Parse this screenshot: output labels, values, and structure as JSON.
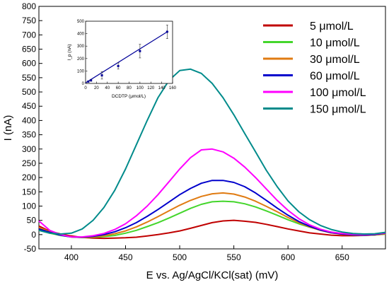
{
  "chart_data": [
    {
      "type": "line",
      "xlabel": "E vs. Ag/AgCl/KCl(sat) (mV)",
      "ylabel": "I (nA)",
      "xlim": [
        370,
        690
      ],
      "ylim": [
        -50,
        800
      ],
      "x_ticks": [
        400,
        450,
        500,
        550,
        600,
        650
      ],
      "y_ticks": [
        -50,
        0,
        50,
        100,
        150,
        200,
        250,
        300,
        350,
        400,
        450,
        500,
        550,
        600,
        650,
        700,
        750,
        800
      ],
      "grid": false,
      "legend_position": "top-right",
      "x": [
        370,
        380,
        390,
        400,
        410,
        420,
        430,
        440,
        450,
        460,
        470,
        480,
        490,
        500,
        510,
        520,
        530,
        540,
        550,
        560,
        570,
        580,
        590,
        600,
        610,
        620,
        630,
        640,
        650,
        660,
        670,
        680,
        690
      ],
      "series": [
        {
          "name": "5 μmol/L",
          "color": "#c00000",
          "values": [
            30,
            12,
            2,
            -5,
            -10,
            -12,
            -13,
            -12,
            -11,
            -9,
            -5,
            0,
            6,
            13,
            22,
            32,
            42,
            48,
            50,
            47,
            43,
            36,
            28,
            20,
            13,
            6,
            2,
            -2,
            -4,
            -4,
            -3,
            -1,
            2
          ]
        },
        {
          "name": "10 μmol/L",
          "color": "#44d62c",
          "values": [
            15,
            5,
            -3,
            -8,
            -10,
            -9,
            -7,
            -3,
            5,
            15,
            28,
            42,
            58,
            75,
            92,
            106,
            115,
            117,
            115,
            108,
            97,
            83,
            68,
            52,
            38,
            26,
            16,
            8,
            3,
            0,
            -2,
            -1,
            2
          ]
        },
        {
          "name": "30 μmol/L",
          "color": "#e07b12",
          "values": [
            25,
            10,
            0,
            -8,
            -10,
            -8,
            -4,
            3,
            13,
            27,
            44,
            63,
            83,
            103,
            120,
            134,
            143,
            146,
            142,
            132,
            117,
            99,
            80,
            60,
            42,
            27,
            15,
            6,
            1,
            -2,
            -3,
            -1,
            3
          ]
        },
        {
          "name": "60 μmol/L",
          "color": "#0000cc",
          "values": [
            20,
            8,
            -2,
            -8,
            -9,
            -6,
            0,
            10,
            24,
            42,
            64,
            88,
            114,
            140,
            162,
            180,
            190,
            190,
            183,
            168,
            146,
            120,
            93,
            68,
            46,
            29,
            16,
            7,
            2,
            -1,
            -2,
            0,
            5
          ]
        },
        {
          "name": "100 μmol/L",
          "color": "#ff00ff",
          "values": [
            48,
            15,
            0,
            -8,
            -8,
            -4,
            4,
            18,
            38,
            66,
            100,
            140,
            185,
            230,
            270,
            297,
            300,
            290,
            268,
            237,
            200,
            160,
            120,
            85,
            56,
            34,
            19,
            9,
            4,
            1,
            0,
            2,
            6
          ]
        },
        {
          "name": "150 μmol/L",
          "color": "#008b8b",
          "values": [
            15,
            5,
            2,
            5,
            20,
            50,
            95,
            155,
            230,
            315,
            400,
            480,
            540,
            575,
            580,
            565,
            530,
            480,
            420,
            355,
            290,
            225,
            168,
            118,
            80,
            52,
            32,
            18,
            9,
            4,
            2,
            3,
            8
          ]
        }
      ]
    },
    {
      "type": "scatter",
      "xlabel": "DCDTP (μmol/L)",
      "ylabel": "I_p (nA)",
      "xlim": [
        0,
        160
      ],
      "ylim": [
        0,
        500
      ],
      "x_ticks": [
        0,
        20,
        40,
        60,
        80,
        100,
        120,
        140,
        160
      ],
      "y_ticks": [
        0,
        100,
        200,
        300,
        400,
        500
      ],
      "x": [
        5,
        10,
        30,
        60,
        100,
        150
      ],
      "values": [
        15,
        25,
        65,
        140,
        260,
        415
      ],
      "error": [
        5,
        8,
        30,
        25,
        55,
        55
      ],
      "fit": {
        "x": [
          0,
          152
        ],
        "y": [
          5,
          420
        ]
      },
      "color": "#000099"
    }
  ]
}
